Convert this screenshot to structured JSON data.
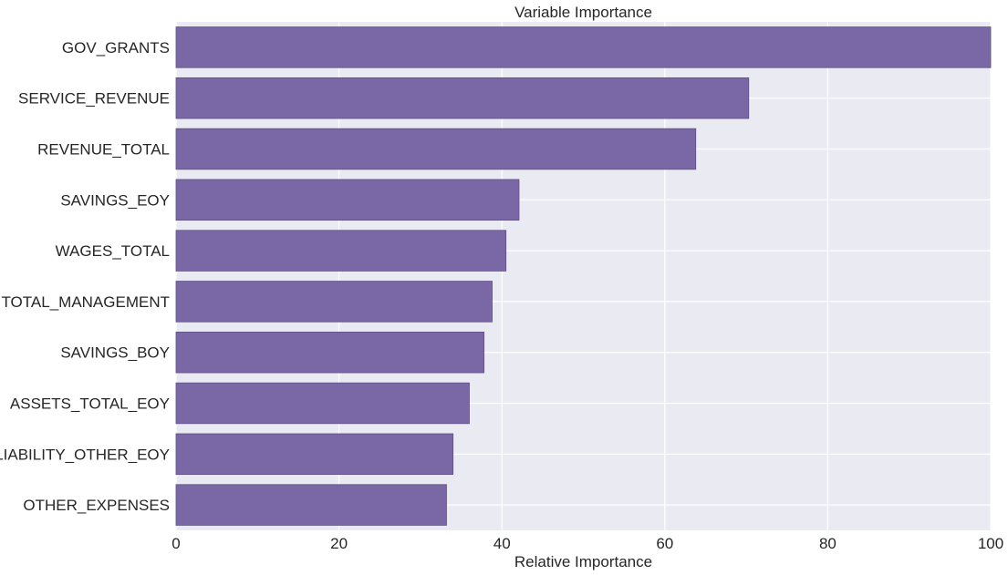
{
  "chart_data": {
    "type": "bar",
    "orientation": "horizontal",
    "title": "Variable Importance",
    "xlabel": "Relative Importance",
    "ylabel": "",
    "categories": [
      "GOV_GRANTS",
      "SERVICE_REVENUE",
      "REVENUE_TOTAL",
      "SAVINGS_EOY",
      "WAGES_TOTAL",
      "TOTAL_MANAGEMENT",
      "SAVINGS_BOY",
      "ASSETS_TOTAL_EOY",
      "LIABILITY_OTHER_EOY",
      "OTHER_EXPENSES"
    ],
    "values": [
      100,
      70.3,
      63.8,
      42.1,
      40.5,
      38.8,
      37.8,
      36.0,
      34.0,
      33.2
    ],
    "xlim": [
      0,
      100
    ],
    "xticks": [
      0,
      20,
      40,
      60,
      80,
      100
    ],
    "xtick_labels": [
      "0",
      "20",
      "40",
      "60",
      "80",
      "100"
    ],
    "grid": true,
    "bar_color": "#7a68a6",
    "background_color": "#eaeaf2",
    "grid_color": "#ffffff"
  }
}
